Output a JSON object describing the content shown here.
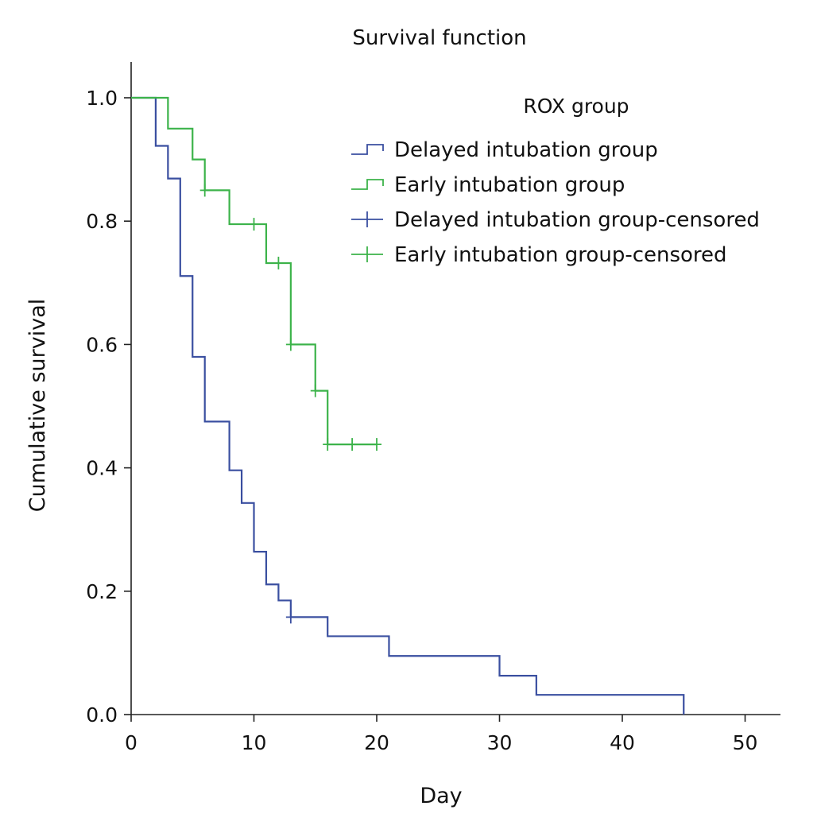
{
  "chart_data": {
    "type": "line",
    "subtype": "kaplan-meier-step",
    "title": "Survival function",
    "xlabel": "Day",
    "ylabel": "Cumulative survival",
    "xlim": [
      0,
      53
    ],
    "ylim": [
      0,
      1.05
    ],
    "xticks": [
      0,
      10,
      20,
      30,
      40,
      50
    ],
    "yticks": [
      0.0,
      0.2,
      0.4,
      0.6,
      0.8,
      1.0
    ],
    "xtick_labels": [
      "0",
      "10",
      "20",
      "30",
      "40",
      "50"
    ],
    "ytick_labels": [
      "0.0",
      "0.2",
      "0.4",
      "0.6",
      "0.8",
      "1.0"
    ],
    "legend": {
      "title": "ROX group",
      "position": "top-right",
      "entries": [
        {
          "label": "Delayed intubation group",
          "kind": "step",
          "color": "#3a4fa0"
        },
        {
          "label": "Early intubation group",
          "kind": "step",
          "color": "#3cb34a"
        },
        {
          "label": "Delayed intubation group-censored",
          "kind": "censor",
          "color": "#3a4fa0"
        },
        {
          "label": "Early intubation group-censored",
          "kind": "censor",
          "color": "#3cb34a"
        }
      ]
    },
    "series": [
      {
        "name": "Delayed intubation group",
        "color": "#3a4fa0",
        "points": [
          [
            0,
            1.0
          ],
          [
            2,
            0.922
          ],
          [
            3,
            0.869
          ],
          [
            4,
            0.711
          ],
          [
            5,
            0.58
          ],
          [
            6,
            0.475
          ],
          [
            8,
            0.396
          ],
          [
            9,
            0.343
          ],
          [
            10,
            0.264
          ],
          [
            11,
            0.211
          ],
          [
            12,
            0.185
          ],
          [
            13,
            0.158
          ],
          [
            16,
            0.127
          ],
          [
            21,
            0.095
          ],
          [
            30,
            0.063
          ],
          [
            33,
            0.032
          ],
          [
            45,
            0.0
          ]
        ],
        "censored": [
          [
            13,
            0.158
          ]
        ]
      },
      {
        "name": "Early intubation group",
        "color": "#3cb34a",
        "points": [
          [
            0,
            1.0
          ],
          [
            3,
            0.95
          ],
          [
            5,
            0.9
          ],
          [
            6,
            0.85
          ],
          [
            8,
            0.795
          ],
          [
            11,
            0.732
          ],
          [
            13,
            0.6
          ],
          [
            15,
            0.525
          ],
          [
            16,
            0.438
          ]
        ],
        "end_x": 20,
        "censored": [
          [
            6,
            0.85
          ],
          [
            10,
            0.795
          ],
          [
            12,
            0.732
          ],
          [
            13,
            0.6
          ],
          [
            15,
            0.525
          ],
          [
            16,
            0.438
          ],
          [
            18,
            0.438
          ],
          [
            20,
            0.438
          ]
        ]
      }
    ]
  }
}
